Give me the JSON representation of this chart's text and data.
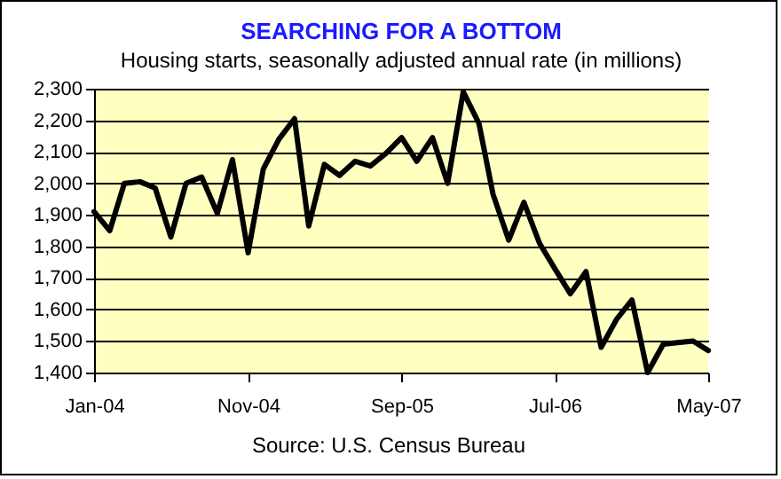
{
  "chart_data": {
    "type": "line",
    "title": "SEARCHING FOR A BOTTOM",
    "subtitle": "Housing starts, seasonally adjusted annual rate (in millions)",
    "x": [
      "2004-01",
      "2004-02",
      "2004-03",
      "2004-04",
      "2004-05",
      "2004-06",
      "2004-07",
      "2004-08",
      "2004-09",
      "2004-10",
      "2004-11",
      "2004-12",
      "2005-01",
      "2005-02",
      "2005-03",
      "2005-04",
      "2005-05",
      "2005-06",
      "2005-07",
      "2005-08",
      "2005-09",
      "2005-10",
      "2005-11",
      "2005-12",
      "2006-01",
      "2006-02",
      "2006-03",
      "2006-04",
      "2006-05",
      "2006-06",
      "2006-07",
      "2006-08",
      "2006-09",
      "2006-10",
      "2006-11",
      "2006-12",
      "2007-01",
      "2007-02",
      "2007-03",
      "2007-04",
      "2007-05"
    ],
    "series": [
      {
        "color": "#000000",
        "values": [
          1910,
          1850,
          2000,
          2005,
          1985,
          1830,
          2000,
          2020,
          1905,
          2075,
          1780,
          2045,
          2140,
          2205,
          1865,
          2060,
          2025,
          2070,
          2055,
          2095,
          2145,
          2070,
          2145,
          2000,
          2290,
          2190,
          1965,
          1820,
          1940,
          1810,
          1730,
          1650,
          1720,
          1480,
          1570,
          1630,
          1400,
          1490,
          1495,
          1500,
          1470
        ]
      }
    ],
    "xlim": [
      "2004-01",
      "2007-05"
    ],
    "xticks": [
      {
        "value": "2004-01",
        "label": "Jan-04"
      },
      {
        "value": "2004-11",
        "label": "Nov-04"
      },
      {
        "value": "2005-09",
        "label": "Sep-05"
      },
      {
        "value": "2006-07",
        "label": "Jul-06"
      },
      {
        "value": "2007-05",
        "label": "May-07"
      }
    ],
    "ylim": [
      1400,
      2300
    ],
    "yticks": [
      {
        "value": 1400,
        "label": "1,400"
      },
      {
        "value": 1500,
        "label": "1,500"
      },
      {
        "value": 1600,
        "label": "1,600"
      },
      {
        "value": 1700,
        "label": "1,700"
      },
      {
        "value": 1800,
        "label": "1,800"
      },
      {
        "value": 1900,
        "label": "1,900"
      },
      {
        "value": 2000,
        "label": "2,000"
      },
      {
        "value": 2100,
        "label": "2,100"
      },
      {
        "value": 2200,
        "label": "2,200"
      },
      {
        "value": 2300,
        "label": "2,300"
      }
    ],
    "grid": "y",
    "line_style": "solid",
    "annotations": [
      "Source: U.S. Census Bureau"
    ]
  }
}
